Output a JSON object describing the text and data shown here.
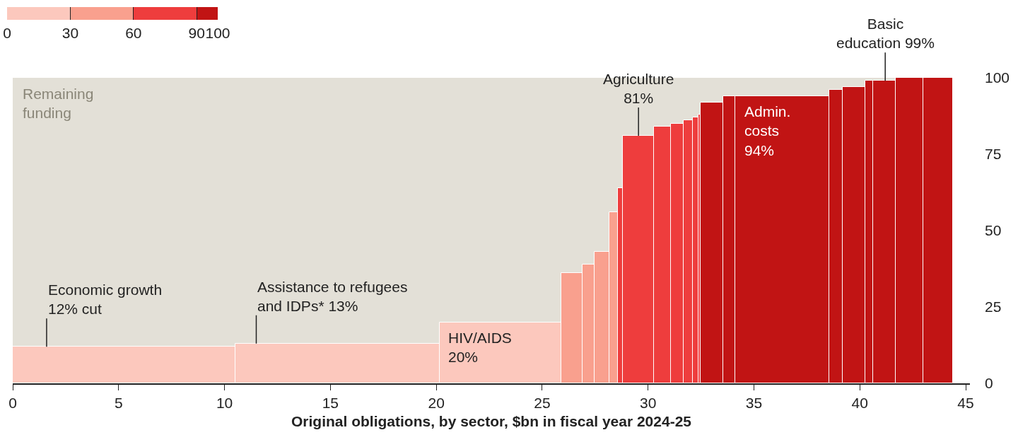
{
  "chart_data": {
    "type": "histogram",
    "xlabel": "Original obligations, by sector, $bn in fiscal year 2024-25",
    "bins": [
      0,
      10.5,
      20.15,
      25.9,
      26.92,
      27.47,
      28.18,
      28.56,
      28.81,
      30.27,
      31.09,
      31.67,
      32.11,
      32.38,
      32.49,
      33.56,
      34.13,
      38.55,
      39.2,
      40.25,
      40.63,
      41.7,
      43.0,
      44.4
    ],
    "values": [
      12,
      13,
      20,
      36,
      39,
      43,
      56,
      64,
      81,
      84,
      85,
      86,
      87,
      88,
      92,
      94,
      94,
      96,
      97,
      99,
      99,
      100,
      100
    ],
    "colors": [
      "#fcc8bd",
      "#fcc8bd",
      "#fcc8bd",
      "#f9a08e",
      "#f9a08e",
      "#f9a08e",
      "#f9a08e",
      "#ee3d3d",
      "#ee3d3d",
      "#ee3d3d",
      "#ee3d3d",
      "#ee3d3d",
      "#ee3d3d",
      "#ee3d3d",
      "#c11414",
      "#c11414",
      "#c11414",
      "#c11414",
      "#c11414",
      "#c11414",
      "#c11414",
      "#c11414",
      "#c11414"
    ],
    "clim": [
      0,
      100
    ],
    "cticks": [
      0,
      30,
      60,
      90,
      100
    ],
    "xlim": [
      0,
      45.2
    ],
    "xticks": [
      0,
      5,
      10,
      15,
      20,
      25,
      30,
      35,
      40,
      45
    ],
    "ylim": [
      0,
      100
    ],
    "yticks": [
      0,
      25,
      50,
      75,
      100
    ],
    "bands": [
      {
        "axis": "y",
        "from": 0,
        "to": 100,
        "label": "Remaining\nfunding",
        "color": "#e3e0d7"
      }
    ],
    "annotations": [
      {
        "text": "Economic growth\n12% cut",
        "x": 1.6,
        "y": 12
      },
      {
        "text": "Assistance to refugees\nand IDPs* 13%",
        "x": 11.5,
        "y": 13
      },
      {
        "text": "HIV/AIDS\n20%",
        "x": 20.5,
        "y": 20
      },
      {
        "text": "Agriculture\n81%",
        "x": 29.55,
        "y": 81
      },
      {
        "text": "Admin.\ncosts\n94%",
        "x": 34.5,
        "y": 94
      },
      {
        "text": "Basic\neducation 99%",
        "x": 41.2,
        "y": 99
      }
    ]
  }
}
